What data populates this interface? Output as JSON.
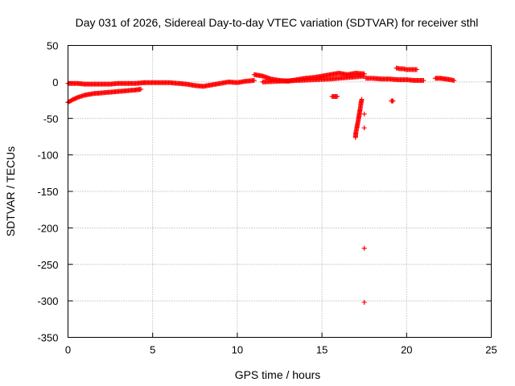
{
  "chart_data": {
    "type": "scatter",
    "title": "Day 031 of 2026, Sidereal Day-to-day VTEC variation (SDTVAR) for receiver sthl",
    "xlabel": "GPS time / hours",
    "ylabel": "SDTVAR / TECUs",
    "xlim": [
      0,
      25
    ],
    "ylim": [
      -350,
      50
    ],
    "xticks": [
      0,
      5,
      10,
      15,
      20,
      25
    ],
    "yticks": [
      50,
      0,
      -50,
      -100,
      -150,
      -200,
      -250,
      -300,
      -350
    ],
    "grid": true,
    "marker": "+",
    "color": "#ff0000",
    "segments": [
      {
        "x": [
          0.0,
          0.5,
          1.0,
          1.5,
          2.0,
          2.5,
          3.0,
          3.5,
          4.0,
          4.5
        ],
        "y": [
          -2,
          -2,
          -3,
          -3,
          -3,
          -3,
          -2,
          -2,
          -2,
          -1
        ]
      },
      {
        "x": [
          0.0,
          0.3,
          0.6,
          1.0,
          1.5,
          2.0,
          2.5,
          3.0,
          3.5,
          4.0,
          4.3
        ],
        "y": [
          -28,
          -24,
          -21,
          -18,
          -16,
          -15,
          -14,
          -13,
          -12,
          -11,
          -10
        ]
      },
      {
        "x": [
          4.5,
          5.0,
          5.5,
          6.0,
          6.5,
          7.0,
          7.5,
          8.0,
          8.5,
          9.0,
          9.5,
          10.0,
          10.5,
          11.0
        ],
        "y": [
          -1,
          -1,
          -1,
          -1,
          -2,
          -3,
          -5,
          -6,
          -4,
          -2,
          0,
          -1,
          1,
          2
        ]
      },
      {
        "x": [
          11.0,
          11.5,
          12.0,
          12.5,
          13.0,
          13.5,
          14.0,
          14.5,
          15.0,
          15.5,
          16.0,
          16.5,
          17.0,
          17.5
        ],
        "y": [
          10,
          8,
          4,
          2,
          1,
          3,
          5,
          6,
          8,
          10,
          12,
          10,
          12,
          11
        ]
      },
      {
        "x": [
          11.5,
          12.5,
          13.5,
          14.5,
          15.5,
          16.5,
          17.5
        ],
        "y": [
          0,
          1,
          2,
          3,
          4,
          6,
          8
        ]
      },
      {
        "x": [
          15.6,
          15.9
        ],
        "y": [
          -20,
          -20
        ]
      },
      {
        "x": [
          17.35,
          17.3,
          17.25,
          17.2,
          17.15,
          17.1,
          17.05,
          17.0,
          16.98
        ],
        "y": [
          -24,
          -30,
          -38,
          -45,
          -52,
          -58,
          -64,
          -70,
          -76
        ]
      },
      {
        "x": [
          17.6,
          18.0,
          18.5,
          19.0,
          19.5,
          20.0,
          20.5,
          21.0
        ],
        "y": [
          5,
          5,
          4,
          4,
          3,
          3,
          2,
          2
        ]
      },
      {
        "x": [
          19.4,
          19.6,
          19.8,
          20.0,
          20.2,
          20.4,
          20.6
        ],
        "y": [
          19,
          18,
          18,
          17,
          17,
          17,
          17
        ]
      },
      {
        "x": [
          19.1,
          19.2
        ],
        "y": [
          -26,
          -26
        ]
      },
      {
        "x": [
          21.7,
          22.0,
          22.3,
          22.6,
          22.8
        ],
        "y": [
          5,
          5,
          4,
          3,
          2
        ]
      },
      {
        "x": [
          17.5,
          17.5,
          17.5,
          17.5
        ],
        "y": [
          -44,
          -63,
          -228,
          -302
        ]
      }
    ]
  }
}
